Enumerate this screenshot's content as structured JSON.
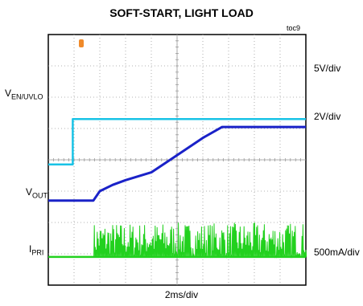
{
  "chart_data": {
    "type": "line",
    "title": "SOFT-START, LIGHT LOAD",
    "figure_id": "toc9",
    "xlabel": "2ms/div",
    "grid": true,
    "x_divisions": 10,
    "y_divisions": 8,
    "trigger_marker": "T",
    "channels": [
      {
        "name": "V",
        "sub": "EN/UVLO",
        "scale": "5V/div",
        "color": "#19c3e6"
      },
      {
        "name": "V",
        "sub": "OUT",
        "scale": "2V/div",
        "color": "#1a22c8"
      },
      {
        "name": "I",
        "sub": "PRI",
        "scale": "500mA/div",
        "color": "#22d11e"
      }
    ],
    "traces": {
      "en_uvlo": {
        "x": [
          0,
          0.95,
          0.95,
          10
        ],
        "y": [
          -0.15,
          -0.15,
          1.3,
          1.3
        ]
      },
      "vout": {
        "x": [
          0,
          1.75,
          2.0,
          2.5,
          3.0,
          4.0,
          5.0,
          6.0,
          6.75,
          10
        ],
        "y": [
          -1.3,
          -1.3,
          -1.0,
          -0.8,
          -0.65,
          -0.4,
          0.15,
          0.7,
          1.05,
          1.05
        ]
      },
      "ipri": {
        "baseline": -3.1,
        "burst_start": 1.75,
        "burst_end": 10,
        "burst_amplitude": 1.1
      }
    }
  }
}
